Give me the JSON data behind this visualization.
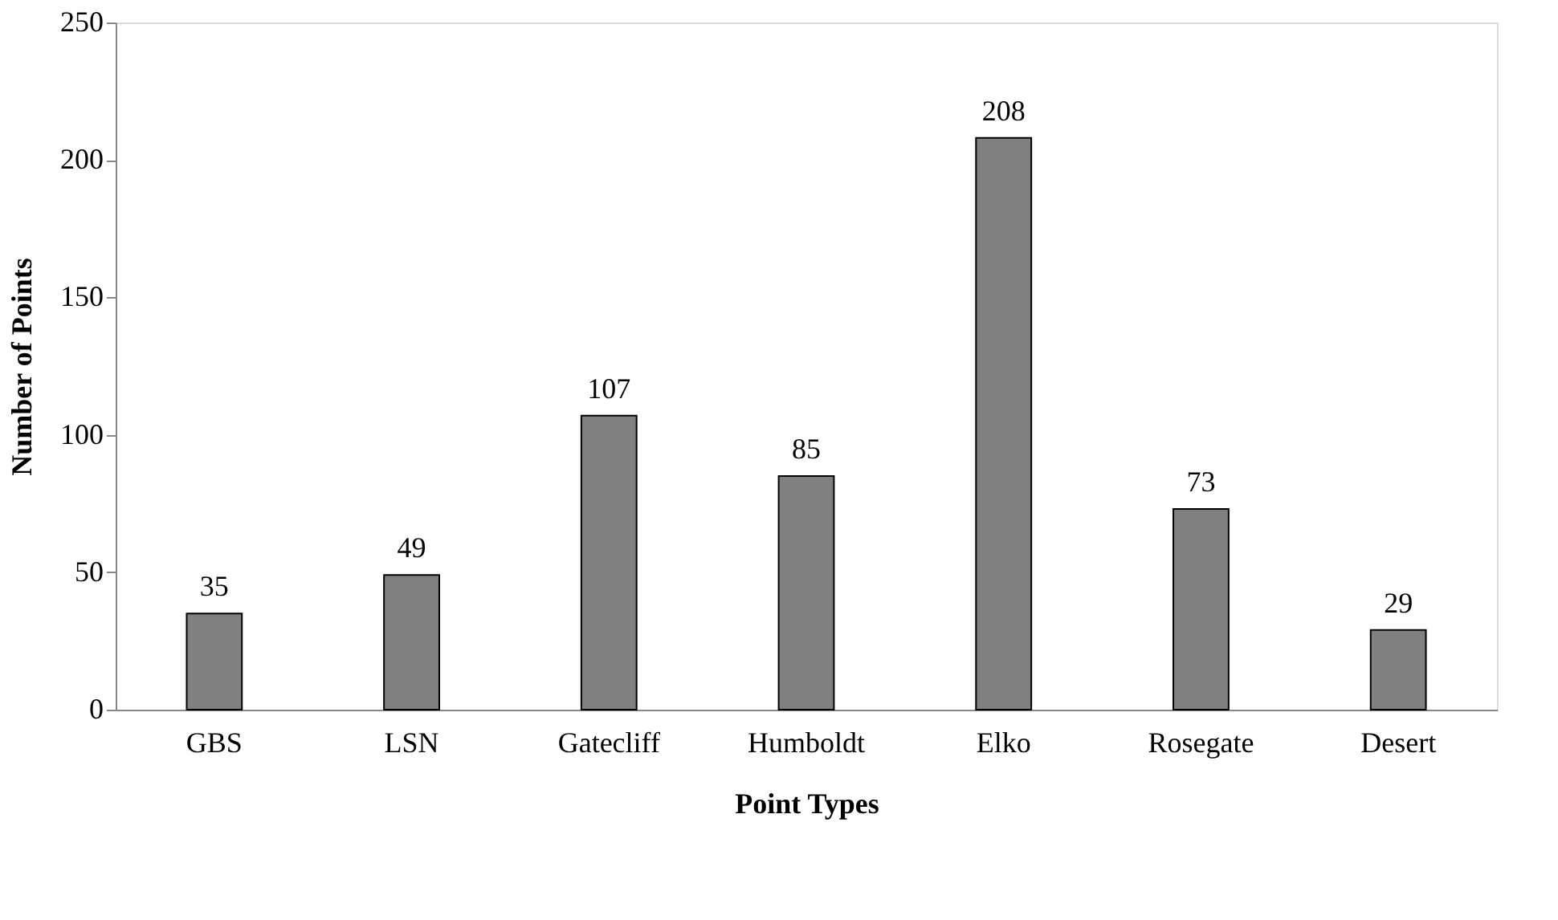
{
  "chart_data": {
    "type": "bar",
    "xlabel": "Point Types",
    "ylabel": "Number of Points",
    "categories": [
      "GBS",
      "LSN",
      "Gatecliff",
      "Humboldt",
      "Elko",
      "Rosegate",
      "Desert"
    ],
    "values": [
      35,
      49,
      107,
      85,
      208,
      73,
      29
    ],
    "color": "#808080",
    "data_labels": true,
    "grid": false,
    "ylim": [
      0,
      250
    ],
    "yticks": [
      0,
      50,
      100,
      150,
      200,
      250
    ]
  }
}
